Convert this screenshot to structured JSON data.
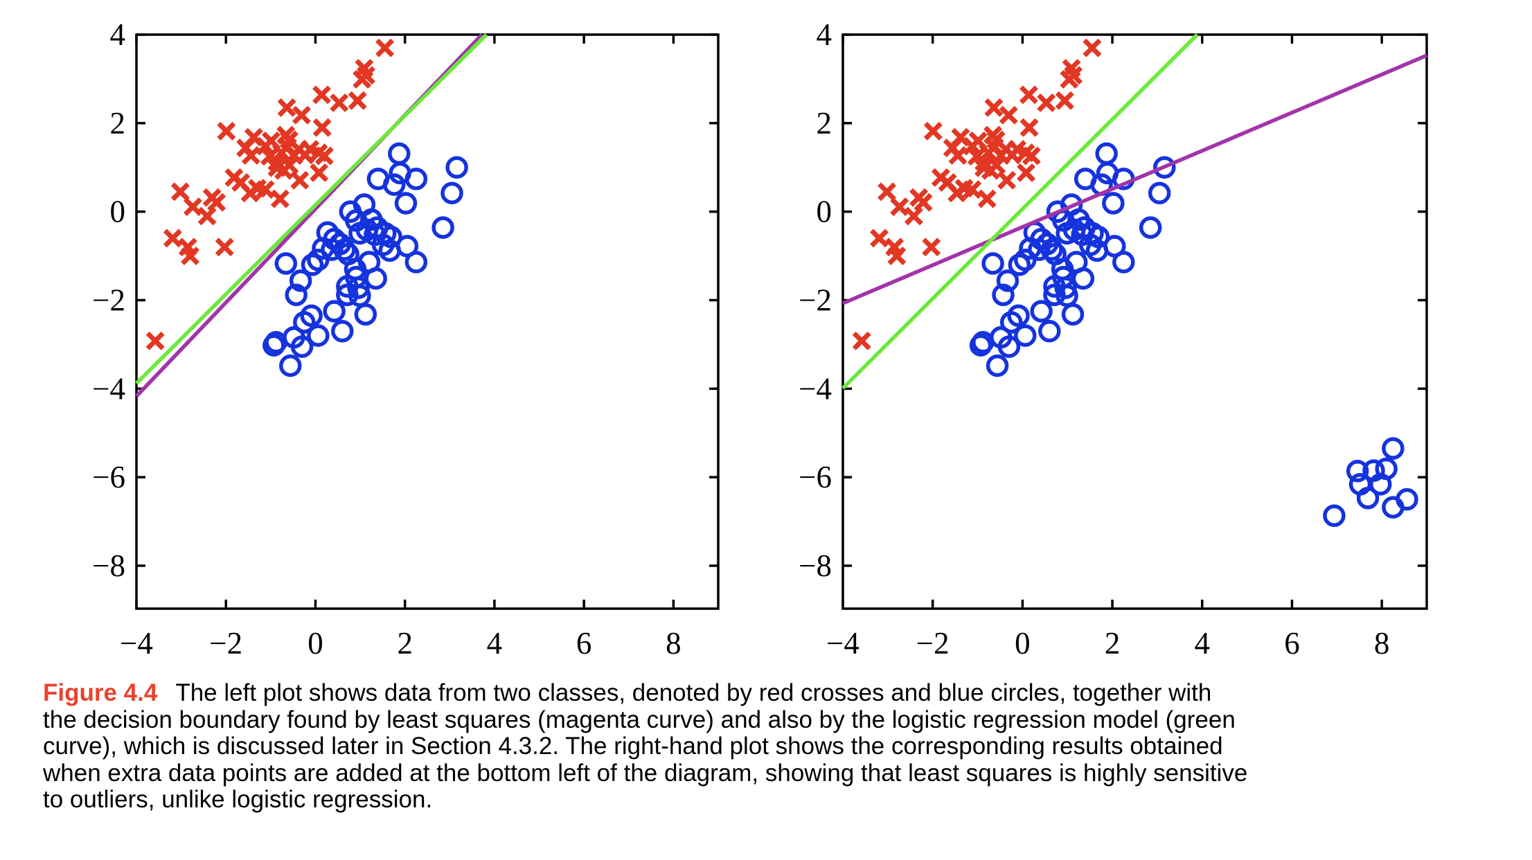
{
  "figure": {
    "label": "Figure 4.4",
    "caption": "The left plot shows data from two classes, denoted by red crosses and blue circles, together with\nthe decision boundary found by least squares (magenta curve) and also by the logistic regression model (green\ncurve), which is discussed later in Section 4.3.2. The right-hand plot shows the corresponding results obtained\nwhen extra data points are added at the bottom left of the diagram, showing that least squares is highly sensitive\nto outliers, unlike logistic regression."
  },
  "colors": {
    "red_cross": "#e23723",
    "blue_circle": "#1533dd",
    "green_line": "#6ce83c",
    "magenta_line": "#a234aa",
    "axis": "#000000",
    "caption_label": "#e8432e",
    "caption_text": "#000000",
    "background": "#ffffff"
  },
  "chart_data": [
    {
      "id": "left",
      "type": "scatter",
      "title": "",
      "xlabel": "",
      "ylabel": "",
      "xlim": [
        -4,
        9
      ],
      "ylim": [
        -8.97,
        4
      ],
      "grid": false,
      "legend": null,
      "xticks": {
        "values": [
          -4,
          -2,
          0,
          2,
          4,
          6,
          8
        ],
        "labels": [
          "−4",
          "−2",
          "0",
          "2",
          "4",
          "6",
          "8"
        ]
      },
      "yticks": {
        "values": [
          4,
          2,
          0,
          -2,
          -4,
          -6,
          -8
        ],
        "labels": [
          "4",
          "2",
          "0",
          "−2",
          "−4",
          "−6",
          "−8"
        ]
      },
      "series": [
        {
          "name": "class1-red-crosses",
          "marker": "x",
          "color_key": "red_cross",
          "points": [
            [
              1.55,
              3.7
            ],
            [
              1.09,
              3.24
            ],
            [
              1.13,
              3.08
            ],
            [
              1.04,
              2.99
            ],
            [
              0.14,
              2.64
            ],
            [
              0.53,
              2.46
            ],
            [
              0.94,
              2.51
            ],
            [
              -0.64,
              2.35
            ],
            [
              -0.31,
              2.18
            ],
            [
              0.15,
              1.9
            ],
            [
              -1.99,
              1.82
            ],
            [
              -1.38,
              1.68
            ],
            [
              -0.99,
              1.6
            ],
            [
              -0.66,
              1.73
            ],
            [
              -1.56,
              1.44
            ],
            [
              -1.44,
              1.27
            ],
            [
              -1.12,
              1.48
            ],
            [
              -1.02,
              1.25
            ],
            [
              -0.86,
              1.12
            ],
            [
              -0.76,
              1.33
            ],
            [
              -0.62,
              1.46
            ],
            [
              -0.59,
              1.62
            ],
            [
              -0.48,
              1.27
            ],
            [
              -0.37,
              1.41
            ],
            [
              -0.23,
              1.28
            ],
            [
              -0.12,
              1.41
            ],
            [
              0.07,
              1.33
            ],
            [
              0.2,
              1.26
            ],
            [
              -0.86,
              0.99
            ],
            [
              -0.71,
              0.93
            ],
            [
              -0.58,
              1.05
            ],
            [
              -0.35,
              0.71
            ],
            [
              0.08,
              0.88
            ],
            [
              -1.82,
              0.77
            ],
            [
              -1.67,
              0.66
            ],
            [
              -1.46,
              0.42
            ],
            [
              -1.3,
              0.53
            ],
            [
              -1.12,
              0.5
            ],
            [
              -0.79,
              0.29
            ],
            [
              -3.02,
              0.45
            ],
            [
              -2.74,
              0.11
            ],
            [
              -2.31,
              0.32
            ],
            [
              -2.21,
              0.21
            ],
            [
              -2.42,
              -0.1
            ],
            [
              -3.19,
              -0.6
            ],
            [
              -2.85,
              -0.8
            ],
            [
              -2.8,
              -1.0
            ],
            [
              -2.03,
              -0.8
            ],
            [
              -3.58,
              -2.92
            ]
          ]
        },
        {
          "name": "class2-blue-circles",
          "marker": "o",
          "color_key": "blue_circle",
          "points": [
            [
              1.87,
              1.31
            ],
            [
              1.4,
              0.74
            ],
            [
              1.89,
              0.87
            ],
            [
              1.76,
              0.61
            ],
            [
              2.25,
              0.74
            ],
            [
              3.16,
              1.0
            ],
            [
              3.05,
              0.42
            ],
            [
              2.02,
              0.19
            ],
            [
              2.85,
              -0.36
            ],
            [
              0.78,
              0.0
            ],
            [
              1.09,
              0.16
            ],
            [
              0.91,
              -0.2
            ],
            [
              1.25,
              -0.18
            ],
            [
              1.38,
              -0.36
            ],
            [
              1.15,
              -0.41
            ],
            [
              0.99,
              -0.49
            ],
            [
              1.33,
              -0.52
            ],
            [
              1.56,
              -0.49
            ],
            [
              1.69,
              -0.57
            ],
            [
              1.51,
              -0.75
            ],
            [
              1.66,
              -0.88
            ],
            [
              2.05,
              -0.78
            ],
            [
              2.25,
              -1.14
            ],
            [
              0.27,
              -0.47
            ],
            [
              0.42,
              -0.62
            ],
            [
              0.55,
              -0.73
            ],
            [
              0.17,
              -0.83
            ],
            [
              0.37,
              -0.86
            ],
            [
              0.65,
              -0.86
            ],
            [
              0.06,
              -1.09
            ],
            [
              -0.07,
              -1.2
            ],
            [
              -0.66,
              -1.17
            ],
            [
              0.73,
              -0.96
            ],
            [
              1.2,
              -1.14
            ],
            [
              0.89,
              -1.3
            ],
            [
              0.91,
              -1.48
            ],
            [
              1.35,
              -1.51
            ],
            [
              0.71,
              -1.69
            ],
            [
              0.96,
              -1.72
            ],
            [
              0.71,
              -1.88
            ],
            [
              0.99,
              -1.9
            ],
            [
              -0.33,
              -1.56
            ],
            [
              -0.43,
              -1.88
            ],
            [
              -0.09,
              -2.35
            ],
            [
              -0.25,
              -2.5
            ],
            [
              0.42,
              -2.25
            ],
            [
              1.12,
              -2.32
            ],
            [
              0.6,
              -2.7
            ],
            [
              0.06,
              -2.8
            ],
            [
              -0.48,
              -2.84
            ],
            [
              -0.88,
              -2.95
            ],
            [
              -0.93,
              -3.02
            ],
            [
              -0.3,
              -3.05
            ],
            [
              -0.56,
              -3.48
            ]
          ]
        }
      ],
      "lines": [
        {
          "name": "least-squares-boundary",
          "color_key": "magenta_line",
          "x1": -4,
          "y1": -4.17,
          "x2": 3.72,
          "y2": 4
        },
        {
          "name": "logistic-regression-boundary",
          "color_key": "green_line",
          "x1": -4,
          "y1": -3.88,
          "x2": 3.82,
          "y2": 4
        }
      ]
    },
    {
      "id": "right",
      "type": "scatter",
      "title": "",
      "xlabel": "",
      "ylabel": "",
      "xlim": [
        -4,
        9
      ],
      "ylim": [
        -8.97,
        4
      ],
      "grid": false,
      "legend": null,
      "xticks": {
        "values": [
          -4,
          -2,
          0,
          2,
          4,
          6,
          8
        ],
        "labels": [
          "−4",
          "−2",
          "0",
          "2",
          "4",
          "6",
          "8"
        ]
      },
      "yticks": {
        "values": [
          4,
          2,
          0,
          -2,
          -4,
          -6,
          -8
        ],
        "labels": [
          "4",
          "2",
          "0",
          "−2",
          "−4",
          "−6",
          "−8"
        ]
      },
      "series": [
        {
          "name": "class1-red-crosses",
          "marker": "x",
          "color_key": "red_cross",
          "points": [
            [
              1.55,
              3.7
            ],
            [
              1.09,
              3.24
            ],
            [
              1.13,
              3.08
            ],
            [
              1.04,
              2.99
            ],
            [
              0.14,
              2.64
            ],
            [
              0.53,
              2.46
            ],
            [
              0.94,
              2.51
            ],
            [
              -0.64,
              2.35
            ],
            [
              -0.31,
              2.18
            ],
            [
              0.15,
              1.9
            ],
            [
              -1.99,
              1.82
            ],
            [
              -1.38,
              1.68
            ],
            [
              -0.99,
              1.6
            ],
            [
              -0.66,
              1.73
            ],
            [
              -1.56,
              1.44
            ],
            [
              -1.44,
              1.27
            ],
            [
              -1.12,
              1.48
            ],
            [
              -1.02,
              1.25
            ],
            [
              -0.86,
              1.12
            ],
            [
              -0.76,
              1.33
            ],
            [
              -0.62,
              1.46
            ],
            [
              -0.59,
              1.62
            ],
            [
              -0.48,
              1.27
            ],
            [
              -0.37,
              1.41
            ],
            [
              -0.23,
              1.28
            ],
            [
              -0.12,
              1.41
            ],
            [
              0.07,
              1.33
            ],
            [
              0.2,
              1.26
            ],
            [
              -0.86,
              0.99
            ],
            [
              -0.71,
              0.93
            ],
            [
              -0.58,
              1.05
            ],
            [
              -0.35,
              0.71
            ],
            [
              0.08,
              0.88
            ],
            [
              -1.82,
              0.77
            ],
            [
              -1.67,
              0.66
            ],
            [
              -1.46,
              0.42
            ],
            [
              -1.3,
              0.53
            ],
            [
              -1.12,
              0.5
            ],
            [
              -0.79,
              0.29
            ],
            [
              -3.02,
              0.45
            ],
            [
              -2.74,
              0.11
            ],
            [
              -2.31,
              0.32
            ],
            [
              -2.21,
              0.21
            ],
            [
              -2.42,
              -0.1
            ],
            [
              -3.19,
              -0.6
            ],
            [
              -2.85,
              -0.8
            ],
            [
              -2.8,
              -1.0
            ],
            [
              -2.03,
              -0.8
            ],
            [
              -3.58,
              -2.92
            ]
          ]
        },
        {
          "name": "class2-blue-circles",
          "marker": "o",
          "color_key": "blue_circle",
          "points": [
            [
              1.87,
              1.31
            ],
            [
              1.4,
              0.74
            ],
            [
              1.89,
              0.87
            ],
            [
              1.76,
              0.61
            ],
            [
              2.25,
              0.74
            ],
            [
              3.16,
              1.0
            ],
            [
              3.05,
              0.42
            ],
            [
              2.02,
              0.19
            ],
            [
              2.85,
              -0.36
            ],
            [
              0.78,
              0.0
            ],
            [
              1.09,
              0.16
            ],
            [
              0.91,
              -0.2
            ],
            [
              1.25,
              -0.18
            ],
            [
              1.38,
              -0.36
            ],
            [
              1.15,
              -0.41
            ],
            [
              0.99,
              -0.49
            ],
            [
              1.33,
              -0.52
            ],
            [
              1.56,
              -0.49
            ],
            [
              1.69,
              -0.57
            ],
            [
              1.51,
              -0.75
            ],
            [
              1.66,
              -0.88
            ],
            [
              2.05,
              -0.78
            ],
            [
              2.25,
              -1.14
            ],
            [
              0.27,
              -0.47
            ],
            [
              0.42,
              -0.62
            ],
            [
              0.55,
              -0.73
            ],
            [
              0.17,
              -0.83
            ],
            [
              0.37,
              -0.86
            ],
            [
              0.65,
              -0.86
            ],
            [
              0.06,
              -1.09
            ],
            [
              -0.07,
              -1.2
            ],
            [
              -0.66,
              -1.17
            ],
            [
              0.73,
              -0.96
            ],
            [
              1.2,
              -1.14
            ],
            [
              0.89,
              -1.3
            ],
            [
              0.91,
              -1.48
            ],
            [
              1.35,
              -1.51
            ],
            [
              0.71,
              -1.69
            ],
            [
              0.96,
              -1.72
            ],
            [
              0.71,
              -1.88
            ],
            [
              0.99,
              -1.9
            ],
            [
              -0.33,
              -1.56
            ],
            [
              -0.43,
              -1.88
            ],
            [
              -0.09,
              -2.35
            ],
            [
              -0.25,
              -2.5
            ],
            [
              0.42,
              -2.25
            ],
            [
              1.12,
              -2.32
            ],
            [
              0.6,
              -2.7
            ],
            [
              0.06,
              -2.8
            ],
            [
              -0.48,
              -2.84
            ],
            [
              -0.88,
              -2.95
            ],
            [
              -0.93,
              -3.02
            ],
            [
              -0.3,
              -3.05
            ],
            [
              -0.56,
              -3.48
            ]
          ]
        },
        {
          "name": "class2-outlier-circles",
          "marker": "o",
          "color_key": "blue_circle",
          "points": [
            [
              8.25,
              -5.35
            ],
            [
              7.46,
              -5.86
            ],
            [
              7.82,
              -5.85
            ],
            [
              8.1,
              -5.81
            ],
            [
              7.52,
              -6.16
            ],
            [
              7.97,
              -6.16
            ],
            [
              7.69,
              -6.47
            ],
            [
              8.25,
              -6.68
            ],
            [
              8.56,
              -6.5
            ],
            [
              6.94,
              -6.87
            ]
          ]
        }
      ],
      "lines": [
        {
          "name": "least-squares-boundary",
          "color_key": "magenta_line",
          "x1": -4,
          "y1": -2.07,
          "x2": 9,
          "y2": 3.53
        },
        {
          "name": "logistic-regression-boundary",
          "color_key": "green_line",
          "x1": -4,
          "y1": -3.99,
          "x2": 3.89,
          "y2": 4
        }
      ]
    }
  ]
}
